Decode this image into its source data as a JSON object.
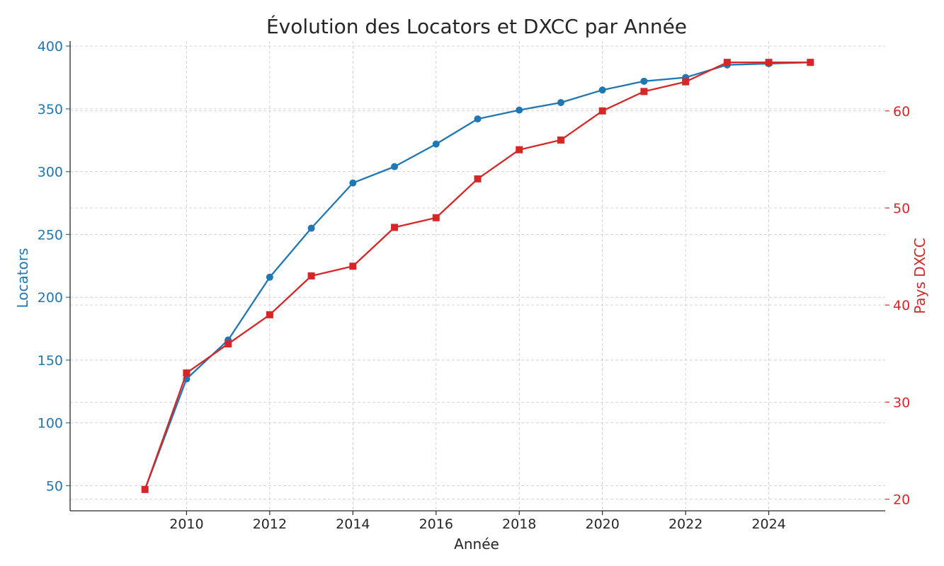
{
  "chart_data": {
    "type": "line",
    "title": "Évolution des Locators et DXCC par Année",
    "xlabel": "Année",
    "ylabel_left": "Locators",
    "ylabel_right": "Pays DXCC",
    "x": [
      2009,
      2010,
      2011,
      2012,
      2013,
      2014,
      2015,
      2016,
      2017,
      2018,
      2019,
      2020,
      2021,
      2022,
      2023,
      2024,
      2025
    ],
    "xlim": [
      2007.2,
      2026.8
    ],
    "xticks": [
      2010,
      2012,
      2014,
      2016,
      2018,
      2020,
      2022,
      2024
    ],
    "ylim_left": [
      30,
      404
    ],
    "yticks_left": [
      50,
      100,
      150,
      200,
      250,
      300,
      350,
      400
    ],
    "ylim_right": [
      18.8,
      67.2
    ],
    "yticks_right": [
      20,
      30,
      40,
      50,
      60
    ],
    "grid": true,
    "series": [
      {
        "name": "Locators",
        "axis": "left",
        "marker": "circle",
        "color": "#1f77b4",
        "values": [
          47,
          135,
          166,
          216,
          255,
          291,
          304,
          322,
          342,
          349,
          355,
          365,
          372,
          375,
          385,
          386,
          387
        ]
      },
      {
        "name": "Pays DXCC",
        "axis": "right",
        "marker": "square",
        "color": "#d62728",
        "values": [
          21,
          33,
          36,
          39,
          43,
          44,
          48,
          49,
          53,
          56,
          57,
          60,
          62,
          63,
          65,
          65,
          65
        ]
      }
    ]
  }
}
